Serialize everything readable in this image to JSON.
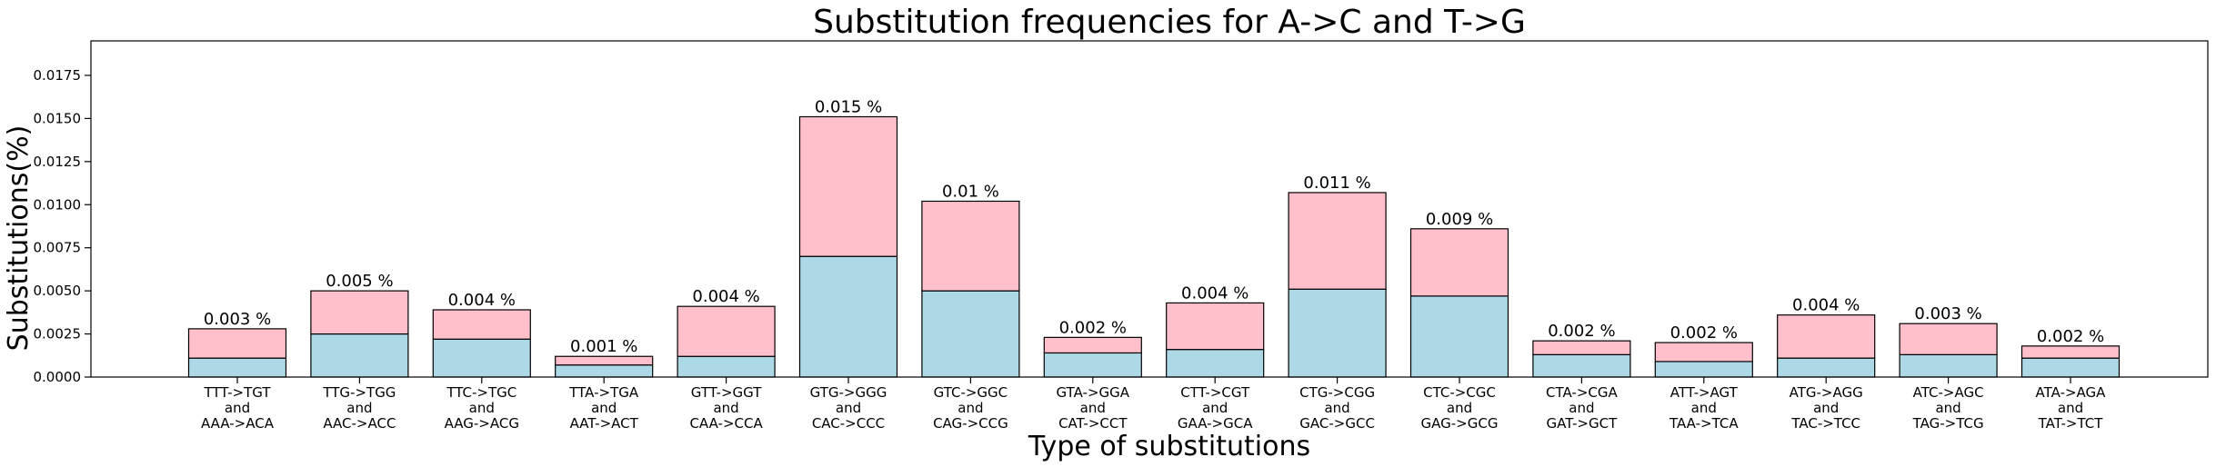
{
  "chart_data": {
    "type": "bar",
    "stacked": true,
    "title": "Substitution frequencies for A->C and T->G",
    "xlabel": "Type of substitutions",
    "ylabel": "Substitutions(%)",
    "ylim": [
      0,
      0.0195
    ],
    "yticks": [
      "0.0000",
      "0.0025",
      "0.0050",
      "0.0075",
      "0.0100",
      "0.0125",
      "0.0150",
      "0.0175"
    ],
    "grid": false,
    "legend": "none",
    "categories": [
      [
        "TTT->TGT",
        "and",
        "AAA->ACA"
      ],
      [
        "TTG->TGG",
        "and",
        "AAC->ACC"
      ],
      [
        "TTC->TGC",
        "and",
        "AAG->ACG"
      ],
      [
        "TTA->TGA",
        "and",
        "AAT->ACT"
      ],
      [
        "GTT->GGT",
        "and",
        "CAA->CCA"
      ],
      [
        "GTG->GGG",
        "and",
        "CAC->CCC"
      ],
      [
        "GTC->GGC",
        "and",
        "CAG->CCG"
      ],
      [
        "GTA->GGA",
        "and",
        "CAT->CCT"
      ],
      [
        "CTT->CGT",
        "and",
        "GAA->GCA"
      ],
      [
        "CTG->CGG",
        "and",
        "GAC->GCC"
      ],
      [
        "CTC->CGC",
        "and",
        "GAG->GCG"
      ],
      [
        "CTA->CGA",
        "and",
        "GAT->GCT"
      ],
      [
        "ATT->AGT",
        "and",
        "TAA->TCA"
      ],
      [
        "ATG->AGG",
        "and",
        "TAC->TCC"
      ],
      [
        "ATC->AGC",
        "and",
        "TAG->TCG"
      ],
      [
        "ATA->AGA",
        "and",
        "TAT->TCT"
      ]
    ],
    "series": [
      {
        "color": "#add8e6",
        "values": [
          0.0011,
          0.0025,
          0.0022,
          0.0007,
          0.0012,
          0.007,
          0.005,
          0.0014,
          0.0016,
          0.0051,
          0.0047,
          0.0013,
          0.0009,
          0.0011,
          0.0013,
          0.0011
        ]
      },
      {
        "color": "#ffc0cb",
        "values": [
          0.0017,
          0.0025,
          0.0017,
          0.0005,
          0.0029,
          0.0081,
          0.0052,
          0.0009,
          0.0027,
          0.0056,
          0.0039,
          0.0008,
          0.0011,
          0.0025,
          0.0018,
          0.0007
        ]
      }
    ],
    "data_labels": [
      "0.003 %",
      "0.005 %",
      "0.004 %",
      "0.001 %",
      "0.004 %",
      "0.015 %",
      "0.01 %",
      "0.002 %",
      "0.004 %",
      "0.011 %",
      "0.009 %",
      "0.002 %",
      "0.002 %",
      "0.004 %",
      "0.003 %",
      "0.002 %"
    ]
  }
}
